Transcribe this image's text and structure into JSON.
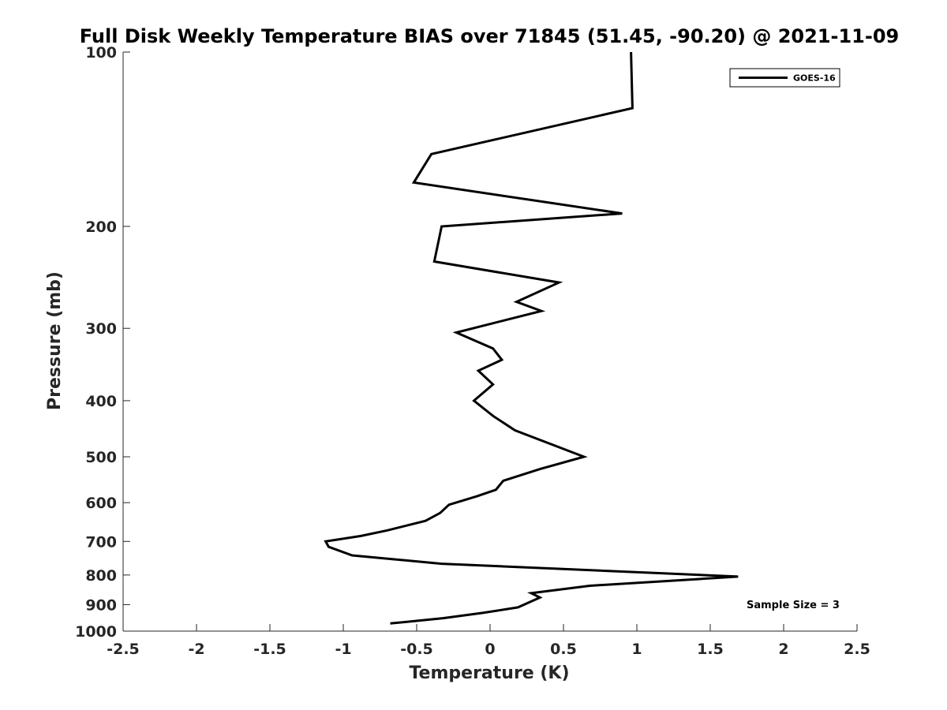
{
  "chart_data": {
    "type": "line",
    "title": "Full Disk Weekly Temperature BIAS over 71845 (51.45, -90.20) @ 2021-11-09",
    "xlabel": "Temperature (K)",
    "ylabel": "Pressure (mb)",
    "xlim": [
      -2.5,
      2.5
    ],
    "ylim": [
      100,
      1000
    ],
    "y_scale": "log",
    "y_reversed": true,
    "x_ticks": [
      -2.5,
      -2,
      -1.5,
      -1,
      -0.5,
      0,
      0.5,
      1,
      1.5,
      2,
      2.5
    ],
    "x_tick_labels": [
      "-2.5",
      "-2",
      "-1.5",
      "-1",
      "-0.5",
      "0",
      "0.5",
      "1",
      "1.5",
      "2",
      "2.5"
    ],
    "y_ticks": [
      100,
      200,
      300,
      400,
      500,
      600,
      700,
      800,
      900,
      1000
    ],
    "y_tick_labels": [
      "100",
      "200",
      "300",
      "400",
      "500",
      "600",
      "700",
      "800",
      "900",
      "1000"
    ],
    "grid": false,
    "legend_position": "top-right",
    "annotation": "Sample Size = 3",
    "series": [
      {
        "name": "GOES-16",
        "color": "#000000",
        "points": [
          {
            "t": 0.96,
            "p": 100
          },
          {
            "t": 0.97,
            "p": 125
          },
          {
            "t": -0.4,
            "p": 150
          },
          {
            "t": -0.52,
            "p": 168
          },
          {
            "t": 0.9,
            "p": 190
          },
          {
            "t": -0.33,
            "p": 200
          },
          {
            "t": -0.38,
            "p": 230
          },
          {
            "t": 0.47,
            "p": 250
          },
          {
            "t": 0.18,
            "p": 270
          },
          {
            "t": 0.35,
            "p": 280
          },
          {
            "t": -0.23,
            "p": 305
          },
          {
            "t": 0.02,
            "p": 325
          },
          {
            "t": 0.08,
            "p": 340
          },
          {
            "t": -0.08,
            "p": 355
          },
          {
            "t": 0.02,
            "p": 375
          },
          {
            "t": -0.11,
            "p": 400
          },
          {
            "t": 0.02,
            "p": 425
          },
          {
            "t": 0.17,
            "p": 450
          },
          {
            "t": 0.64,
            "p": 500
          },
          {
            "t": 0.34,
            "p": 525
          },
          {
            "t": 0.09,
            "p": 550
          },
          {
            "t": 0.04,
            "p": 570
          },
          {
            "t": -0.09,
            "p": 585
          },
          {
            "t": -0.28,
            "p": 605
          },
          {
            "t": -0.34,
            "p": 625
          },
          {
            "t": -0.44,
            "p": 645
          },
          {
            "t": -0.7,
            "p": 670
          },
          {
            "t": -0.88,
            "p": 685
          },
          {
            "t": -1.12,
            "p": 700
          },
          {
            "t": -1.1,
            "p": 715
          },
          {
            "t": -0.94,
            "p": 740
          },
          {
            "t": -0.33,
            "p": 765
          },
          {
            "t": 1.69,
            "p": 805
          },
          {
            "t": 0.68,
            "p": 835
          },
          {
            "t": 0.28,
            "p": 860
          },
          {
            "t": 0.34,
            "p": 875
          },
          {
            "t": 0.19,
            "p": 910
          },
          {
            "t": -0.05,
            "p": 930
          },
          {
            "t": -0.32,
            "p": 950
          },
          {
            "t": -0.68,
            "p": 970
          }
        ]
      }
    ]
  }
}
